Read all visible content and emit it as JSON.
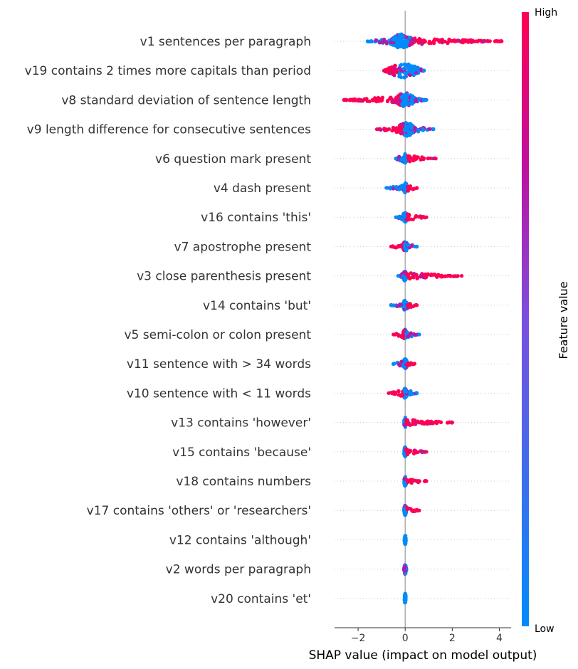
{
  "chart_data": {
    "type": "scatter",
    "subtype": "shap-beeswarm",
    "title": "",
    "xlabel": "SHAP value (impact on model output)",
    "xlim": [
      -3,
      4.5
    ],
    "xticks": [
      -2,
      0,
      2,
      4
    ],
    "xtick_labels": [
      "−2",
      "0",
      "2",
      "4"
    ],
    "colorbar": {
      "title": "Feature value",
      "high_label": "High",
      "low_label": "Low",
      "low_color": "#008bfb",
      "high_color": "#ff0052"
    },
    "features": [
      {
        "name": "v1 sentences per paragraph",
        "min": -1.6,
        "max": 4.1,
        "core": [
          -0.6,
          0.3
        ],
        "high_side": "right"
      },
      {
        "name": "v19 contains 2 times more capitals than period",
        "min": -0.9,
        "max": 0.8,
        "core": [
          -0.7,
          0.6
        ],
        "high_side": "left"
      },
      {
        "name": "v8 standard deviation of sentence length",
        "min": -2.6,
        "max": 0.9,
        "core": [
          -0.4,
          0.4
        ],
        "high_side": "left"
      },
      {
        "name": "v9 length difference for consecutive sentences",
        "min": -1.2,
        "max": 1.2,
        "core": [
          -0.3,
          0.4
        ],
        "high_side": "left"
      },
      {
        "name": "v6 question mark present",
        "min": -0.4,
        "max": 1.3,
        "core": [
          -0.15,
          0.1
        ],
        "high_side": "right"
      },
      {
        "name": "v4 dash present",
        "min": -0.8,
        "max": 0.5,
        "core": [
          -0.1,
          0.1
        ],
        "high_side": "right"
      },
      {
        "name": "v16 contains 'this'",
        "min": -0.4,
        "max": 0.9,
        "core": [
          -0.1,
          0.1
        ],
        "high_side": "right"
      },
      {
        "name": "v7 apostrophe present",
        "min": -0.6,
        "max": 0.5,
        "core": [
          -0.1,
          0.1
        ],
        "high_side": "left"
      },
      {
        "name": "v3 close parenthesis present",
        "min": -0.3,
        "max": 2.4,
        "core": [
          -0.08,
          0.05
        ],
        "high_side": "right"
      },
      {
        "name": "v14 contains 'but'",
        "min": -0.6,
        "max": 0.5,
        "core": [
          -0.1,
          0.1
        ],
        "high_side": "right"
      },
      {
        "name": "v5 semi-colon or colon present",
        "min": -0.5,
        "max": 0.6,
        "core": [
          -0.1,
          0.1
        ],
        "high_side": "left"
      },
      {
        "name": "v11 sentence with > 34 words",
        "min": -0.5,
        "max": 0.4,
        "core": [
          -0.1,
          0.1
        ],
        "high_side": "right"
      },
      {
        "name": "v10 sentence with < 11 words",
        "min": -0.7,
        "max": 0.5,
        "core": [
          -0.1,
          0.1
        ],
        "high_side": "left"
      },
      {
        "name": "v13 contains 'however'",
        "min": -0.05,
        "max": 2.0,
        "core": [
          -0.05,
          0.05
        ],
        "high_side": "right"
      },
      {
        "name": "v15 contains 'because'",
        "min": -0.05,
        "max": 0.9,
        "core": [
          -0.05,
          0.05
        ],
        "high_side": "right"
      },
      {
        "name": "v18 contains numbers",
        "min": -0.05,
        "max": 0.9,
        "core": [
          -0.05,
          0.05
        ],
        "high_side": "right"
      },
      {
        "name": "v17 contains 'others' or 'researchers'",
        "min": -0.05,
        "max": 0.6,
        "core": [
          -0.05,
          0.05
        ],
        "high_side": "right"
      },
      {
        "name": "v12 contains 'although'",
        "min": -0.03,
        "max": 0.03,
        "core": [
          -0.03,
          0.03
        ],
        "high_side": "none"
      },
      {
        "name": "v2 words per paragraph",
        "min": -0.05,
        "max": 0.05,
        "core": [
          -0.05,
          0.05
        ],
        "high_side": "mixed"
      },
      {
        "name": "v20 contains 'et'",
        "min": -0.03,
        "max": 0.03,
        "core": [
          -0.03,
          0.03
        ],
        "high_side": "none"
      }
    ]
  }
}
